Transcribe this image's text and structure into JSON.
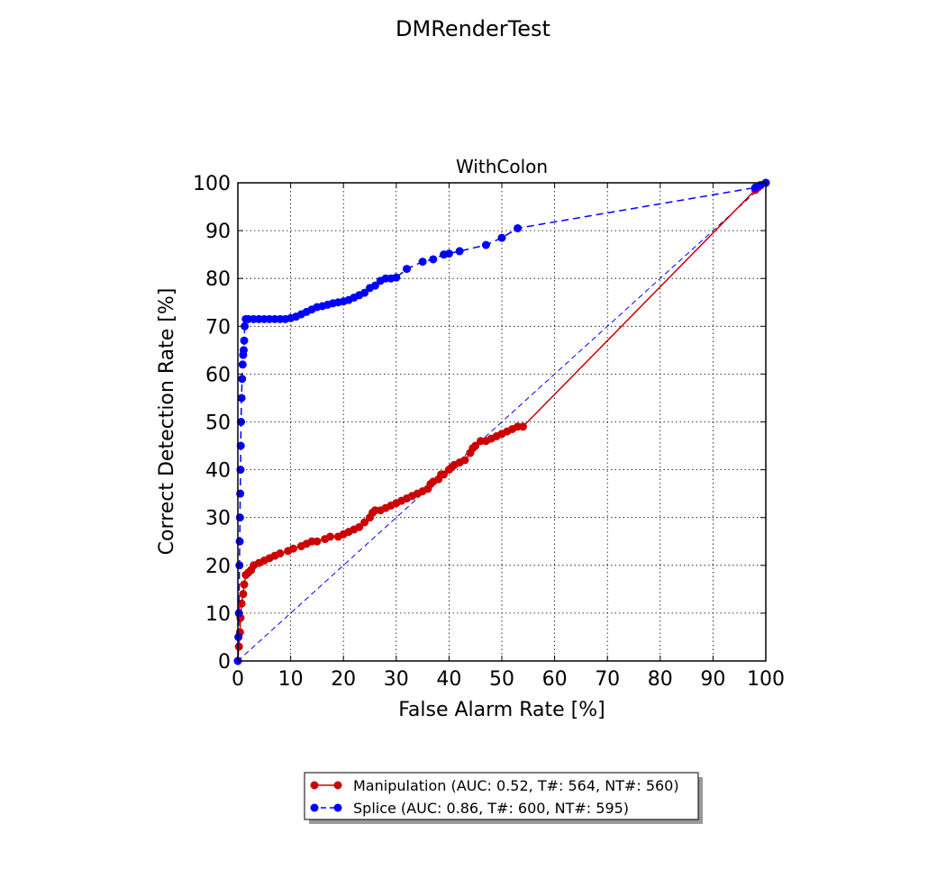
{
  "figure": {
    "title": "DMRenderTest"
  },
  "chart_data": {
    "type": "line",
    "title": "WithColon",
    "xlabel": "False Alarm Rate [%]",
    "ylabel": "Correct Detection Rate [%]",
    "xlim": [
      0,
      100
    ],
    "ylim": [
      0,
      100
    ],
    "xticks": [
      0,
      10,
      20,
      30,
      40,
      50,
      60,
      70,
      80,
      90,
      100
    ],
    "yticks": [
      0,
      10,
      20,
      30,
      40,
      50,
      60,
      70,
      80,
      90,
      100
    ],
    "grid": true,
    "legend_placement": "below-plot",
    "reference_line": {
      "x": [
        0,
        100
      ],
      "y": [
        0,
        100
      ],
      "color": "#0000ff",
      "style": "dashed"
    },
    "series": [
      {
        "name": "Manipulation (AUC: 0.52, T#: 564, NT#: 560)",
        "color": "#cc0000",
        "line_style": "solid",
        "marker": "circle",
        "x": [
          0,
          0.2,
          0.4,
          0.5,
          0.7,
          1.0,
          1.2,
          1.5,
          2.0,
          2.5,
          3.0,
          4.0,
          5.0,
          6.0,
          7.0,
          8.0,
          9.5,
          10.5,
          12.0,
          13.0,
          14.0,
          15.0,
          16.5,
          17.5,
          19.0,
          20.0,
          21.0,
          22.0,
          23.0,
          24.0,
          25.0,
          25.5,
          26.0,
          27.0,
          28.0,
          29.0,
          30.0,
          31.0,
          32.0,
          33.0,
          34.0,
          35.0,
          36.0,
          36.5,
          37.0,
          38.0,
          38.5,
          39.0,
          40.0,
          40.5,
          41.0,
          42.0,
          43.0,
          44.0,
          44.5,
          45.0,
          46.0,
          47.0,
          48.0,
          49.0,
          50.0,
          51.0,
          52.0,
          53.0,
          54.0,
          98.0,
          98.5,
          99.0,
          100.0
        ],
        "y": [
          0,
          3.0,
          6.0,
          9.0,
          12.0,
          14.0,
          16.0,
          18.0,
          18.5,
          19.0,
          20.0,
          20.5,
          21.0,
          21.5,
          22.0,
          22.5,
          23.0,
          23.5,
          24.0,
          24.5,
          25.0,
          25.0,
          25.5,
          26.0,
          26.0,
          26.5,
          27.0,
          27.5,
          28.0,
          29.0,
          30.0,
          31.0,
          31.5,
          31.5,
          32.0,
          32.5,
          33.0,
          33.5,
          34.0,
          34.5,
          35.0,
          35.5,
          36.0,
          37.0,
          37.5,
          38.0,
          39.0,
          39.0,
          40.0,
          40.5,
          41.0,
          41.5,
          42.0,
          43.5,
          44.5,
          45.0,
          46.0,
          46.0,
          46.5,
          47.0,
          47.5,
          48.0,
          48.5,
          49.0,
          49.0,
          98.5,
          99.0,
          99.5,
          100.0
        ]
      },
      {
        "name": "Splice (AUC: 0.86, T#: 600, NT#: 595)",
        "color": "#0000ff",
        "line_style": "dashed",
        "marker": "circle",
        "x": [
          0,
          0.1,
          0.2,
          0.3,
          0.35,
          0.4,
          0.45,
          0.5,
          0.55,
          0.6,
          0.7,
          0.8,
          0.9,
          1.0,
          1.1,
          1.2,
          1.3,
          1.5,
          2.0,
          3.0,
          4.0,
          5.0,
          6.0,
          7.0,
          8.0,
          9.0,
          10.0,
          11.0,
          12.0,
          13.0,
          14.0,
          15.0,
          16.0,
          17.0,
          18.0,
          19.0,
          20.0,
          21.0,
          22.0,
          23.0,
          24.0,
          25.0,
          26.0,
          27.0,
          28.0,
          29.0,
          30.0,
          32.0,
          35.0,
          37.0,
          39.0,
          40.0,
          42.0,
          47.0,
          50.0,
          53.0,
          98.0,
          99.0,
          100.0
        ],
        "y": [
          0,
          5.0,
          10.0,
          20.0,
          25.0,
          30.0,
          35.0,
          40.0,
          45.0,
          50.0,
          55.0,
          59.0,
          62.0,
          64.0,
          65.0,
          67.0,
          70.0,
          71.5,
          71.5,
          71.5,
          71.5,
          71.5,
          71.5,
          71.5,
          71.5,
          71.5,
          71.7,
          72.0,
          72.5,
          73.0,
          73.5,
          74.0,
          74.2,
          74.5,
          74.8,
          75.0,
          75.2,
          75.5,
          76.0,
          76.5,
          77.0,
          78.0,
          78.5,
          79.5,
          80.0,
          80.0,
          80.2,
          82.0,
          83.5,
          84.0,
          85.0,
          85.2,
          85.7,
          87.0,
          88.5,
          90.5,
          99.0,
          99.5,
          100.0
        ]
      }
    ]
  }
}
